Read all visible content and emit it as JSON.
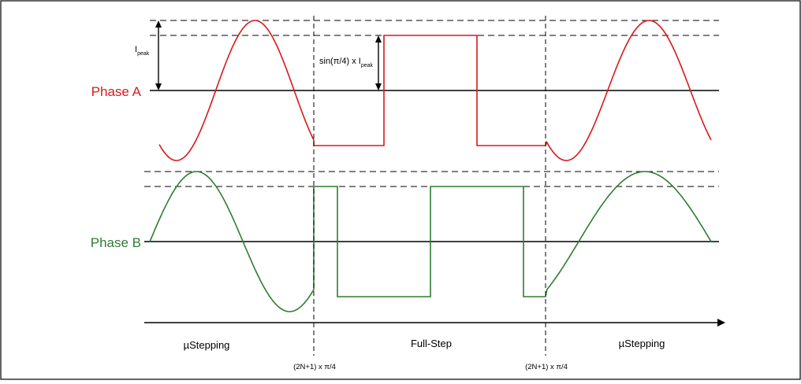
{
  "diagram": {
    "phase_a_label": "Phase A",
    "phase_b_label": "Phase B",
    "ipeak_label": {
      "main": "I",
      "sub": "peak"
    },
    "sin_label": {
      "main": "sin(π/4) x I",
      "sub": "peak"
    },
    "boundary_label_left": "(2N+1) x π/4",
    "boundary_label_right": "(2N+1) x π/4",
    "region_left": "µStepping",
    "region_middle": "Full-Step",
    "region_right": "µStepping"
  },
  "colors": {
    "phase_a": "#d7191c",
    "phase_b": "#2e7d32",
    "axis": "#000000",
    "border": "#000000"
  }
}
